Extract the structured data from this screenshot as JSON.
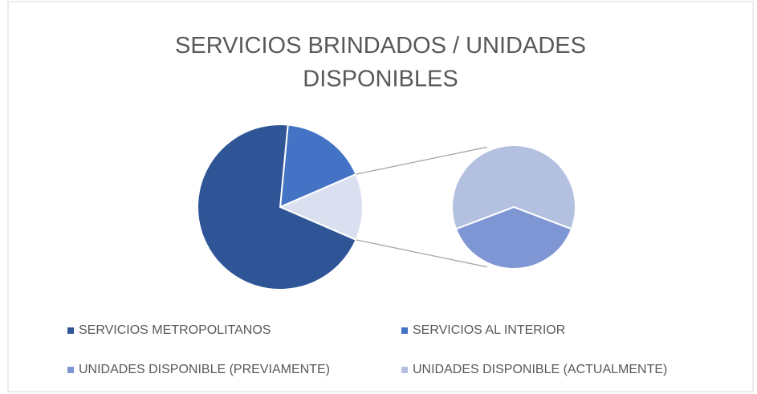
{
  "chart_data": {
    "type": "pie-of-pie",
    "title": "SERVICIOS BRINDADOS / UNIDADES DISPONIBLES",
    "categories": [
      "SERVICIOS METROPOLITANOS",
      "SERVICIOS AL INTERIOR",
      "UNIDADES DISPONIBLE (PREVIAMENTE)",
      "UNIDADES DISPONIBLE (ACTUALMENTE)"
    ],
    "values": [
      70,
      17,
      5,
      8
    ],
    "colors": [
      "#2f5597",
      "#4472c4",
      "#7f96d4",
      "#b4c0e0"
    ],
    "second_plot_count": 2,
    "legend": "bottom"
  }
}
